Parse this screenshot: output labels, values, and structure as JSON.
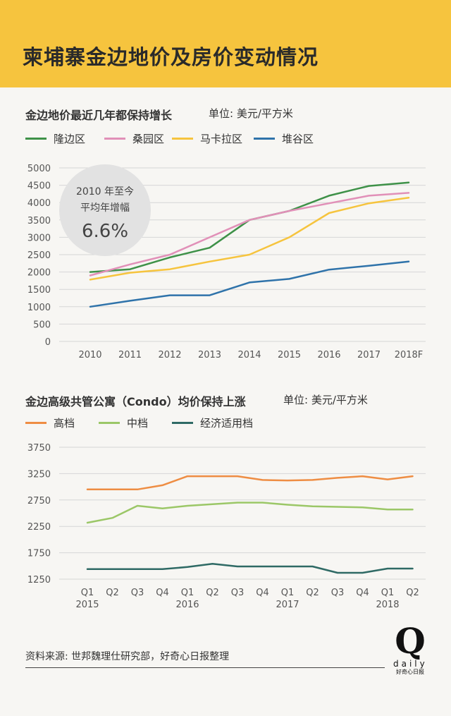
{
  "title": "柬埔寨金边地价及房价变动情况",
  "footer": {
    "source": "资料来源: 世邦魏理仕研究部，好奇心日报整理",
    "logo_letter": "Q",
    "logo_name": "daily",
    "logo_sub": "好奇心日报"
  },
  "colors": {
    "header_bg": "#f6c43e",
    "green": "#3e9148",
    "pink": "#e190b8",
    "yellow": "#f6c43e",
    "blue": "#2f73aa",
    "orange": "#ee8d43",
    "light_green": "#9bc767",
    "teal": "#2f6a65"
  },
  "chart_data": [
    {
      "type": "line",
      "title": "金边地价最近几年都保持增长",
      "unit": "单位: 美元/平方米",
      "categories": [
        "2010",
        "2011",
        "2012",
        "2013",
        "2014",
        "2015",
        "2016",
        "2017",
        "2018F"
      ],
      "ylim": [
        0,
        5000
      ],
      "yticks": [
        0,
        500,
        1000,
        1500,
        2000,
        2500,
        3000,
        3500,
        4000,
        4500,
        5000
      ],
      "grid": true,
      "legend_position": "top",
      "series": [
        {
          "name": "隆边区",
          "color": "#3e9148",
          "values": [
            2000,
            2080,
            2420,
            2700,
            3500,
            3760,
            4200,
            4480,
            4580
          ]
        },
        {
          "name": "桑园区",
          "color": "#e190b8",
          "values": [
            1900,
            2220,
            2500,
            3000,
            3500,
            3760,
            3980,
            4200,
            4280
          ]
        },
        {
          "name": "马卡拉区",
          "color": "#f6c43e",
          "values": [
            1780,
            1980,
            2080,
            2300,
            2500,
            3000,
            3700,
            3980,
            4140
          ]
        },
        {
          "name": "堆谷区",
          "color": "#2f73aa",
          "values": [
            1000,
            1170,
            1330,
            1330,
            1700,
            1800,
            2070,
            2180,
            2300
          ]
        }
      ],
      "annotation": {
        "line1": "2010 年至今",
        "line2": "平均年增幅",
        "value": "6.6%"
      }
    },
    {
      "type": "line",
      "title": "金边高级共管公寓（Condo）均价保持上涨",
      "unit": "单位: 美元/平方米",
      "categories": [
        "Q1",
        "Q2",
        "Q3",
        "Q4",
        "Q1",
        "Q2",
        "Q3",
        "Q4",
        "Q1",
        "Q2",
        "Q3",
        "Q4",
        "Q1",
        "Q2"
      ],
      "year_labels": [
        {
          "label": "2015",
          "index": 0
        },
        {
          "label": "2016",
          "index": 4
        },
        {
          "label": "2017",
          "index": 8
        },
        {
          "label": "2018",
          "index": 12
        }
      ],
      "ylim": [
        1250,
        3750
      ],
      "yticks": [
        1250,
        1750,
        2250,
        2750,
        3250,
        3750
      ],
      "grid": true,
      "legend_position": "top",
      "series": [
        {
          "name": "高档",
          "color": "#ee8d43",
          "values": [
            2950,
            2950,
            2950,
            3030,
            3200,
            3200,
            3200,
            3130,
            3120,
            3130,
            3170,
            3200,
            3140,
            3200
          ]
        },
        {
          "name": "中档",
          "color": "#9bc767",
          "values": [
            2320,
            2410,
            2640,
            2590,
            2640,
            2670,
            2700,
            2700,
            2660,
            2630,
            2620,
            2610,
            2570,
            2570
          ]
        },
        {
          "name": "经济适用档",
          "color": "#2f6a65",
          "values": [
            1440,
            1440,
            1440,
            1440,
            1480,
            1540,
            1490,
            1490,
            1490,
            1490,
            1370,
            1370,
            1450,
            1450
          ]
        }
      ]
    }
  ]
}
